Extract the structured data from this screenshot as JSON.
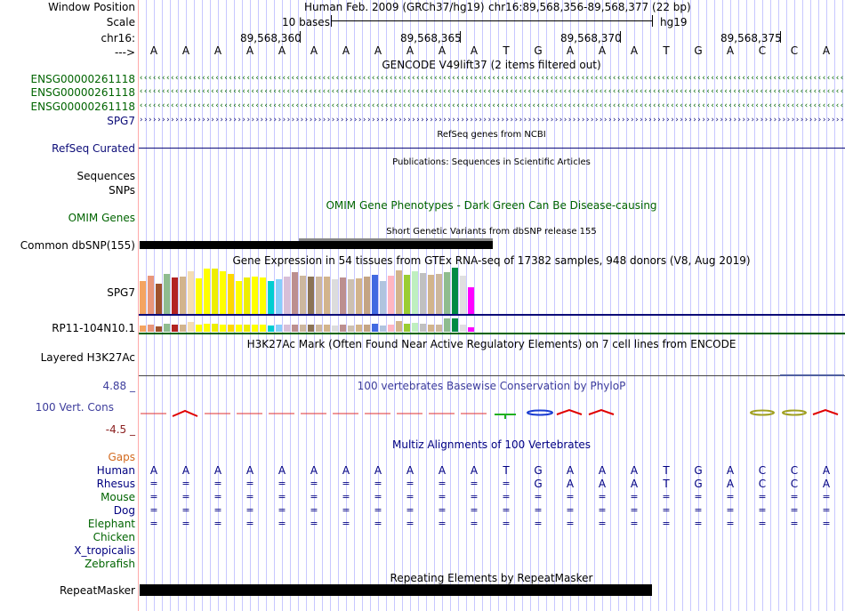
{
  "header": {
    "window_position_label": "Window Position",
    "assembly": "Human Feb. 2009 (GRCh37/hg19)",
    "position": "chr16:89,568,356-89,568,377 (22 bp)",
    "scale_label": "Scale",
    "scale_bases": "10 bases",
    "scale_db": "hg19",
    "chrom_label": "chr16:",
    "coord_ticks": [
      "89,568,360",
      "89,568,365",
      "89,568,370",
      "89,568,375"
    ],
    "strand_label": "--->"
  },
  "sequence": [
    "A",
    "A",
    "A",
    "A",
    "A",
    "A",
    "A",
    "A",
    "A",
    "A",
    "A",
    "T",
    "G",
    "A",
    "A",
    "A",
    "T",
    "G",
    "A",
    "C",
    "C",
    "A"
  ],
  "gencode": {
    "title": "GENCODE V49lift37 (2 items filtered out)",
    "genes": [
      {
        "name": "ENSG00000261118",
        "strand": "‹"
      },
      {
        "name": "ENSG00000261118",
        "strand": "‹"
      },
      {
        "name": "ENSG00000261118",
        "strand": "‹"
      },
      {
        "name": "SPG7",
        "strand": "›"
      }
    ]
  },
  "refseq": {
    "label": "RefSeq Curated",
    "title": "RefSeq genes from NCBI"
  },
  "publications": {
    "title": "Publications: Sequences in Scientific Articles",
    "label_sequences": "Sequences",
    "label_snps": "SNPs"
  },
  "omim": {
    "label": "OMIM Genes",
    "title": "OMIM Gene Phenotypes - Dark Green Can Be Disease-causing"
  },
  "dbsnp": {
    "label": "Common dbSNP(155)",
    "title": "Short Genetic Variants from dbSNP release 155"
  },
  "gtex": {
    "title": "Gene Expression in 54 tissues from GTEx RNA-seq of 17382 samples, 948 donors (V8, Aug 2019)",
    "gene1": "SPG7",
    "gene2": "RP11-104N10.1",
    "colors": [
      "#f4a460",
      "#e9967a",
      "#a0522d",
      "#8fbc8f",
      "#b22222",
      "#d2b48c",
      "#f5deb3",
      "#ffff00",
      "#ffff00",
      "#eeee00",
      "#ffff00",
      "#ffd700",
      "#ffff00",
      "#eeee00",
      "#ffff00",
      "#ffff00",
      "#00ced1",
      "#87cefa",
      "#d8bfd8",
      "#bc8f8f",
      "#cdb79e",
      "#8b7355",
      "#cdb79e",
      "#d2b48c",
      "#dcdcdc",
      "#bc8f8f",
      "#cdc0b0",
      "#d2b48c",
      "#c4a484",
      "#4169e1",
      "#b0c4de",
      "#ffb6c1",
      "#d2b48c",
      "#9acd32",
      "#bfefbf",
      "#c0c0c0",
      "#d2b48c",
      "#cdb79e",
      "#8fbc8f",
      "#008b45",
      "#e0e0e0",
      "#ff00ff"
    ],
    "heights": [
      0.72,
      0.83,
      0.65,
      0.87,
      0.78,
      0.8,
      0.92,
      0.77,
      0.98,
      0.98,
      0.93,
      0.87,
      0.72,
      0.78,
      0.8,
      0.78,
      0.72,
      0.75,
      0.8,
      0.9,
      0.82,
      0.8,
      0.8,
      0.8,
      0.75,
      0.78,
      0.75,
      0.77,
      0.8,
      0.85,
      0.72,
      0.82,
      0.95,
      0.85,
      0.92,
      0.88,
      0.85,
      0.87,
      0.9,
      1.0,
      0.82,
      0.58
    ],
    "heights2": [
      0.45,
      0.55,
      0.4,
      0.6,
      0.5,
      0.5,
      0.7,
      0.5,
      0.6,
      0.6,
      0.55,
      0.55,
      0.5,
      0.5,
      0.5,
      0.5,
      0.45,
      0.5,
      0.5,
      0.55,
      0.5,
      0.5,
      0.5,
      0.5,
      0.45,
      0.5,
      0.45,
      0.5,
      0.5,
      0.6,
      0.45,
      0.55,
      0.8,
      0.6,
      0.65,
      0.6,
      0.55,
      0.55,
      1.0,
      1.0,
      0.55,
      0.35
    ]
  },
  "h3k27ac": {
    "label": "Layered H3K27Ac",
    "title": "H3K27Ac Mark (Often Found Near Active Regulatory Elements) on 7 cell lines from ENCODE"
  },
  "phylop": {
    "label": "100 Vert. Cons",
    "max": "4.88 _",
    "min": "-4.5 _",
    "title": "100 vertebrates Basewise Conservation by PhyloP"
  },
  "multiz": {
    "title": "Multiz Alignments of 100 Vertebrates",
    "gaps_label": "Gaps",
    "species": [
      {
        "name": "Human",
        "color": "#000080",
        "row": [
          "A",
          "A",
          "A",
          "A",
          "A",
          "A",
          "A",
          "A",
          "A",
          "A",
          "A",
          "T",
          "G",
          "A",
          "A",
          "A",
          "T",
          "G",
          "A",
          "C",
          "C",
          "A"
        ]
      },
      {
        "name": "Rhesus",
        "color": "#000080",
        "row": [
          "=",
          "=",
          "=",
          "=",
          "=",
          "=",
          "=",
          "=",
          "=",
          "=",
          "=",
          "=",
          "G",
          "A",
          "A",
          "A",
          "T",
          "G",
          "A",
          "C",
          "C",
          "A"
        ]
      },
      {
        "name": "Mouse",
        "color": "#006400",
        "row": [
          "=",
          "=",
          "=",
          "=",
          "=",
          "=",
          "=",
          "=",
          "=",
          "=",
          "=",
          "=",
          "=",
          "=",
          "=",
          "=",
          "=",
          "=",
          "=",
          "=",
          "=",
          "="
        ]
      },
      {
        "name": "Dog",
        "color": "#000080",
        "row": [
          "=",
          "=",
          "=",
          "=",
          "=",
          "=",
          "=",
          "=",
          "=",
          "=",
          "=",
          "=",
          "=",
          "=",
          "=",
          "=",
          "=",
          "=",
          "=",
          "=",
          "=",
          "="
        ]
      },
      {
        "name": "Elephant",
        "color": "#006400",
        "row": [
          "=",
          "=",
          "=",
          "=",
          "=",
          "=",
          "=",
          "=",
          "=",
          "=",
          "=",
          "=",
          "=",
          "=",
          "=",
          "=",
          "=",
          "=",
          "=",
          "=",
          "=",
          "="
        ]
      },
      {
        "name": "Chicken",
        "color": "#006400",
        "row": []
      },
      {
        "name": "X_tropicalis",
        "color": "#000080",
        "row": []
      },
      {
        "name": "Zebrafish",
        "color": "#006400",
        "row": []
      }
    ]
  },
  "repeatmasker": {
    "label": "RepeatMasker",
    "title": "Repeating Elements by RepeatMasker"
  },
  "colors": {
    "gene_green": "#006400",
    "refseq_navy": "#0c0c78",
    "phylop_blue": "#3d3d9c",
    "gaps_orange": "#d2691e",
    "grid": "#c8c8ff",
    "redline": "#ffaaaa"
  }
}
